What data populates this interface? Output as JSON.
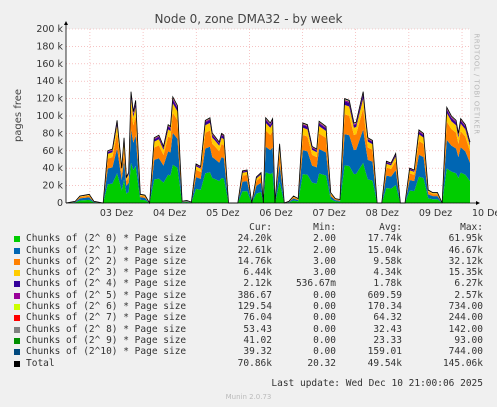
{
  "chart_data": {
    "type": "area",
    "title": "Node 0, zone DMA32 - by week",
    "ylabel": "pages free",
    "side_label": "RRDTOOL / TOBI OETIKER",
    "ylim": [
      0,
      200000
    ],
    "yticks": [
      "0",
      "20 k",
      "40 k",
      "60 k",
      "80 k",
      "100 k",
      "120 k",
      "140 k",
      "160 k",
      "180 k",
      "200 k"
    ],
    "xticks": [
      "03 Dez",
      "04 Dez",
      "05 Dez",
      "06 Dez",
      "07 Dez",
      "08 Dez",
      "09 Dez",
      "10 Dez"
    ],
    "grid": true,
    "series": [
      {
        "name": "Chunks of (2^ 0) * Page size",
        "color": "#00cc00",
        "cur": "24.20k",
        "min": "2.00",
        "avg": "17.74k",
        "max": "61.95k"
      },
      {
        "name": "Chunks of (2^ 1) * Page size",
        "color": "#0066b3",
        "cur": "22.61k",
        "min": "2.00",
        "avg": "15.04k",
        "max": "46.67k"
      },
      {
        "name": "Chunks of (2^ 2) * Page size",
        "color": "#ff8000",
        "cur": "14.76k",
        "min": "3.00",
        "avg": "9.58k",
        "max": "32.12k"
      },
      {
        "name": "Chunks of (2^ 3) * Page size",
        "color": "#ffcc00",
        "cur": "6.44k",
        "min": "3.00",
        "avg": "4.34k",
        "max": "15.35k"
      },
      {
        "name": "Chunks of (2^ 4) * Page size",
        "color": "#330099",
        "cur": "2.12k",
        "min": "536.67m",
        "avg": "1.78k",
        "max": "6.27k"
      },
      {
        "name": "Chunks of (2^ 5) * Page size",
        "color": "#990099",
        "cur": "386.67",
        "min": "0.00",
        "avg": "609.59",
        "max": "2.57k"
      },
      {
        "name": "Chunks of (2^ 6) * Page size",
        "color": "#ccff00",
        "cur": "129.54",
        "min": "0.00",
        "avg": "170.34",
        "max": "734.00"
      },
      {
        "name": "Chunks of (2^ 7) * Page size",
        "color": "#ff0000",
        "cur": "76.04",
        "min": "0.00",
        "avg": "64.32",
        "max": "244.00"
      },
      {
        "name": "Chunks of (2^ 8) * Page size",
        "color": "#808080",
        "cur": "53.43",
        "min": "0.00",
        "avg": "32.43",
        "max": "142.00"
      },
      {
        "name": "Chunks of (2^ 9) * Page size",
        "color": "#008f00",
        "cur": "41.02",
        "min": "0.00",
        "avg": "23.33",
        "max": "93.00"
      },
      {
        "name": "Chunks of (2^10) * Page size",
        "color": "#00487d",
        "cur": "39.32",
        "min": "0.00",
        "avg": "159.01",
        "max": "744.00"
      },
      {
        "name": "Total",
        "color": "#000000",
        "cur": "70.86k",
        "min": "20.32",
        "avg": "49.54k",
        "max": "145.06k"
      }
    ],
    "peaks": [
      [
        0.0,
        0
      ],
      [
        0.02,
        2000
      ],
      [
        0.03,
        8000
      ],
      [
        0.05,
        10000
      ],
      [
        0.06,
        2000
      ],
      [
        0.08,
        0
      ],
      [
        0.09,
        60000
      ],
      [
        0.1,
        62000
      ],
      [
        0.11,
        95000
      ],
      [
        0.12,
        40000
      ],
      [
        0.125,
        75000
      ],
      [
        0.13,
        30000
      ],
      [
        0.135,
        35000
      ],
      [
        0.14,
        128000
      ],
      [
        0.145,
        105000
      ],
      [
        0.15,
        118000
      ],
      [
        0.16,
        10000
      ],
      [
        0.17,
        9000
      ],
      [
        0.18,
        0
      ],
      [
        0.19,
        75000
      ],
      [
        0.2,
        78000
      ],
      [
        0.21,
        65000
      ],
      [
        0.22,
        90000
      ],
      [
        0.225,
        88000
      ],
      [
        0.23,
        122000
      ],
      [
        0.24,
        112000
      ],
      [
        0.25,
        2000
      ],
      [
        0.26,
        3000
      ],
      [
        0.27,
        1000
      ],
      [
        0.28,
        45000
      ],
      [
        0.29,
        42000
      ],
      [
        0.3,
        95000
      ],
      [
        0.31,
        98000
      ],
      [
        0.315,
        80000
      ],
      [
        0.32,
        77000
      ],
      [
        0.33,
        70000
      ],
      [
        0.335,
        80000
      ],
      [
        0.34,
        78000
      ],
      [
        0.35,
        0
      ],
      [
        0.37,
        0
      ],
      [
        0.38,
        37000
      ],
      [
        0.39,
        38000
      ],
      [
        0.4,
        0
      ],
      [
        0.41,
        30000
      ],
      [
        0.42,
        35000
      ],
      [
        0.425,
        0
      ],
      [
        0.43,
        98000
      ],
      [
        0.44,
        92000
      ],
      [
        0.445,
        97000
      ],
      [
        0.45,
        0
      ],
      [
        0.46,
        68000
      ],
      [
        0.47,
        0
      ],
      [
        0.48,
        2000
      ],
      [
        0.49,
        8000
      ],
      [
        0.5,
        5000
      ],
      [
        0.51,
        92000
      ],
      [
        0.52,
        90000
      ],
      [
        0.53,
        65000
      ],
      [
        0.54,
        62000
      ],
      [
        0.545,
        94000
      ],
      [
        0.55,
        92000
      ],
      [
        0.56,
        88000
      ],
      [
        0.57,
        12000
      ],
      [
        0.58,
        5000
      ],
      [
        0.59,
        4000
      ],
      [
        0.6,
        120000
      ],
      [
        0.61,
        118000
      ],
      [
        0.62,
        92000
      ],
      [
        0.625,
        93000
      ],
      [
        0.63,
        105000
      ],
      [
        0.64,
        128000
      ],
      [
        0.645,
        100000
      ],
      [
        0.65,
        75000
      ],
      [
        0.66,
        72000
      ],
      [
        0.67,
        0
      ],
      [
        0.68,
        0
      ],
      [
        0.69,
        48000
      ],
      [
        0.7,
        46000
      ],
      [
        0.71,
        57000
      ],
      [
        0.72,
        0
      ],
      [
        0.73,
        0
      ],
      [
        0.74,
        40000
      ],
      [
        0.75,
        38000
      ],
      [
        0.76,
        84000
      ],
      [
        0.77,
        80000
      ],
      [
        0.78,
        15000
      ],
      [
        0.79,
        12000
      ],
      [
        0.8,
        12000
      ],
      [
        0.81,
        0
      ],
      [
        0.82,
        110000
      ],
      [
        0.83,
        100000
      ],
      [
        0.84,
        95000
      ],
      [
        0.845,
        80000
      ],
      [
        0.85,
        97000
      ],
      [
        0.86,
        90000
      ],
      [
        0.87,
        70000
      ]
    ]
  },
  "legend_header": {
    "cur": "Cur:",
    "min": "Min:",
    "avg": "Avg:",
    "max": "Max:"
  },
  "last_update": "Last update: Wed Dec 10 21:00:06 2025",
  "footer": "Munin 2.0.73"
}
